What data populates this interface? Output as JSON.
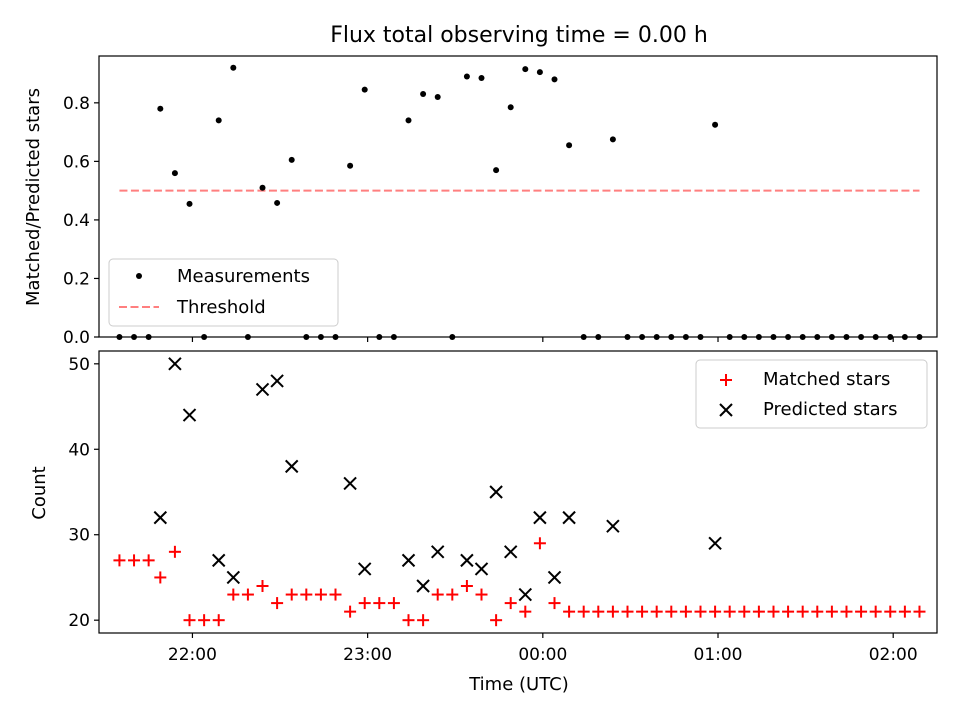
{
  "chart_data": [
    {
      "type": "scatter",
      "title": "Flux total observing time = 0.00 h",
      "xlabel": "",
      "ylabel": "Matched/Predicted stars",
      "ylim": [
        0,
        0.96
      ],
      "yticks": [
        "0.0",
        "0.2",
        "0.4",
        "0.6",
        "0.8"
      ],
      "xticks": [
        "22:00",
        "23:00",
        "00:00",
        "01:00",
        "02:00"
      ],
      "xlim": [
        "21:28",
        "02:15"
      ],
      "legend_position": "lower-left",
      "series": [
        {
          "name": "Measurements",
          "color": "#000000",
          "marker": "dot",
          "points": [
            [
              "21:35",
              0.0
            ],
            [
              "21:40",
              0.0
            ],
            [
              "21:45",
              0.0
            ],
            [
              "21:49",
              0.78
            ],
            [
              "21:54",
              0.56
            ],
            [
              "21:59",
              0.455
            ],
            [
              "22:04",
              0.0
            ],
            [
              "22:09",
              0.74
            ],
            [
              "22:14",
              0.92
            ],
            [
              "22:19",
              0.0
            ],
            [
              "22:24",
              0.51
            ],
            [
              "22:29",
              0.458
            ],
            [
              "22:34",
              0.605
            ],
            [
              "22:39",
              0.0
            ],
            [
              "22:44",
              0.0
            ],
            [
              "22:49",
              0.0
            ],
            [
              "22:54",
              0.585
            ],
            [
              "22:59",
              0.845
            ],
            [
              "23:04",
              0.0
            ],
            [
              "23:09",
              0.0
            ],
            [
              "23:14",
              0.74
            ],
            [
              "23:19",
              0.83
            ],
            [
              "23:24",
              0.82
            ],
            [
              "23:29",
              0.0
            ],
            [
              "23:34",
              0.89
            ],
            [
              "23:39",
              0.885
            ],
            [
              "23:44",
              0.57
            ],
            [
              "23:49",
              0.785
            ],
            [
              "23:54",
              0.915
            ],
            [
              "23:59",
              0.905
            ],
            [
              "00:04",
              0.88
            ],
            [
              "00:09",
              0.655
            ],
            [
              "00:14",
              0.0
            ],
            [
              "00:19",
              0.0
            ],
            [
              "00:24",
              0.675
            ],
            [
              "00:29",
              0.0
            ],
            [
              "00:34",
              0.0
            ],
            [
              "00:39",
              0.0
            ],
            [
              "00:44",
              0.0
            ],
            [
              "00:49",
              0.0
            ],
            [
              "00:54",
              0.0
            ],
            [
              "00:59",
              0.725
            ],
            [
              "01:04",
              0.0
            ],
            [
              "01:09",
              0.0
            ],
            [
              "01:14",
              0.0
            ],
            [
              "01:19",
              0.0
            ],
            [
              "01:24",
              0.0
            ],
            [
              "01:29",
              0.0
            ],
            [
              "01:34",
              0.0
            ],
            [
              "01:39",
              0.0
            ],
            [
              "01:44",
              0.0
            ],
            [
              "01:49",
              0.0
            ],
            [
              "01:54",
              0.0
            ],
            [
              "01:59",
              0.0
            ],
            [
              "02:04",
              0.0
            ],
            [
              "02:09",
              0.0
            ]
          ]
        },
        {
          "name": "Threshold",
          "color": "#ff7f7f",
          "style": "dashed-line",
          "points": [
            [
              "21:35",
              0.5
            ],
            [
              "02:09",
              0.5
            ]
          ]
        }
      ]
    },
    {
      "type": "scatter",
      "title": "",
      "xlabel": "Time (UTC)",
      "ylabel": "Count",
      "ylim": [
        18.5,
        51.5
      ],
      "yticks": [
        "20",
        "30",
        "40",
        "50"
      ],
      "xticks": [
        "22:00",
        "23:00",
        "00:00",
        "01:00",
        "02:00"
      ],
      "xlim": [
        "21:28",
        "02:15"
      ],
      "legend_position": "upper-right",
      "series": [
        {
          "name": "Matched stars",
          "color": "#ff0000",
          "marker": "plus",
          "points": [
            [
              "21:35",
              27
            ],
            [
              "21:40",
              27
            ],
            [
              "21:45",
              27
            ],
            [
              "21:49",
              25
            ],
            [
              "21:54",
              28
            ],
            [
              "21:59",
              20
            ],
            [
              "22:04",
              20
            ],
            [
              "22:09",
              20
            ],
            [
              "22:14",
              23
            ],
            [
              "22:19",
              23
            ],
            [
              "22:24",
              24
            ],
            [
              "22:29",
              22
            ],
            [
              "22:34",
              23
            ],
            [
              "22:39",
              23
            ],
            [
              "22:44",
              23
            ],
            [
              "22:49",
              23
            ],
            [
              "22:54",
              21
            ],
            [
              "22:59",
              22
            ],
            [
              "23:04",
              22
            ],
            [
              "23:09",
              22
            ],
            [
              "23:14",
              20
            ],
            [
              "23:19",
              20
            ],
            [
              "23:24",
              23
            ],
            [
              "23:29",
              23
            ],
            [
              "23:34",
              24
            ],
            [
              "23:39",
              23
            ],
            [
              "23:44",
              20
            ],
            [
              "23:49",
              22
            ],
            [
              "23:54",
              21
            ],
            [
              "23:59",
              29
            ],
            [
              "00:04",
              22
            ],
            [
              "00:09",
              21
            ],
            [
              "00:14",
              21
            ],
            [
              "00:19",
              21
            ],
            [
              "00:24",
              21
            ],
            [
              "00:29",
              21
            ],
            [
              "00:34",
              21
            ],
            [
              "00:39",
              21
            ],
            [
              "00:44",
              21
            ],
            [
              "00:49",
              21
            ],
            [
              "00:54",
              21
            ],
            [
              "00:59",
              21
            ],
            [
              "01:04",
              21
            ],
            [
              "01:09",
              21
            ],
            [
              "01:14",
              21
            ],
            [
              "01:19",
              21
            ],
            [
              "01:24",
              21
            ],
            [
              "01:29",
              21
            ],
            [
              "01:34",
              21
            ],
            [
              "01:39",
              21
            ],
            [
              "01:44",
              21
            ],
            [
              "01:49",
              21
            ],
            [
              "01:54",
              21
            ],
            [
              "01:59",
              21
            ],
            [
              "02:04",
              21
            ],
            [
              "02:09",
              21
            ]
          ]
        },
        {
          "name": "Predicted stars",
          "color": "#000000",
          "marker": "x",
          "points": [
            [
              "21:49",
              32
            ],
            [
              "21:54",
              50
            ],
            [
              "21:59",
              44
            ],
            [
              "22:09",
              27
            ],
            [
              "22:14",
              25
            ],
            [
              "22:24",
              47
            ],
            [
              "22:29",
              48
            ],
            [
              "22:34",
              38
            ],
            [
              "22:54",
              36
            ],
            [
              "22:59",
              26
            ],
            [
              "23:14",
              27
            ],
            [
              "23:19",
              24
            ],
            [
              "23:24",
              28
            ],
            [
              "23:34",
              27
            ],
            [
              "23:39",
              26
            ],
            [
              "23:44",
              35
            ],
            [
              "23:49",
              28
            ],
            [
              "23:54",
              23
            ],
            [
              "23:59",
              32
            ],
            [
              "00:04",
              25
            ],
            [
              "00:09",
              32
            ],
            [
              "00:24",
              31
            ],
            [
              "00:59",
              29
            ]
          ]
        }
      ]
    }
  ]
}
